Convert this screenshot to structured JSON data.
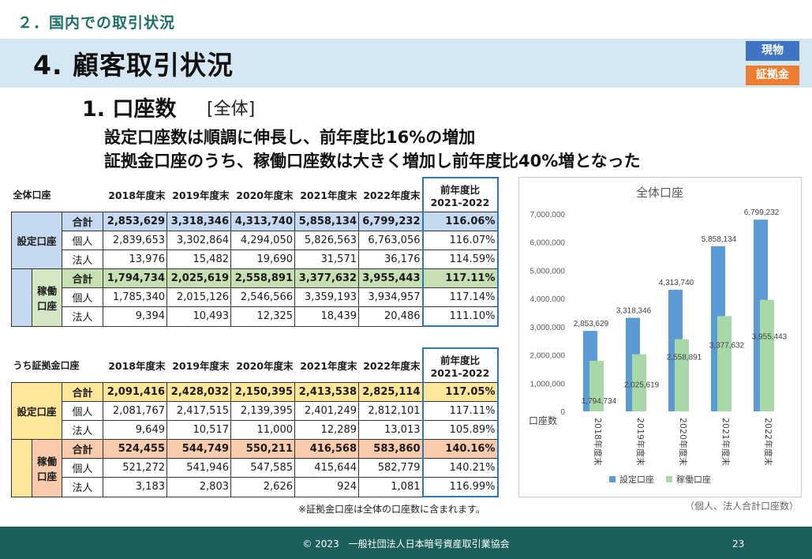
{
  "header": {
    "section_title": "２．国内での取引状況",
    "main_title": "4. 顧客取引状況",
    "tags": [
      "現物",
      "証拠金"
    ],
    "subtitle": "1. 口座数",
    "subtitle_scope": "[全体]",
    "headline_1": "設定口座数は順調に伸長し、前年度比16%の増加",
    "headline_2": "証拠金口座のうち、稼働口座数は大きく増加し前年度比40%増となった"
  },
  "colors": {
    "teal": "#1f6f6b",
    "banner": "#d6e7f4",
    "blue_tag": "#3d75c4",
    "orange_tag": "#ed7d31",
    "t1_group": "#c5daf0",
    "t1_sub_group": "#d5e8c5",
    "t1_row_total": "#c5daf0",
    "t1_sub_row_total": "#c6e0b4",
    "t2_group": "#ffe699",
    "t2_sub_group": "#f8cbad",
    "t2_row_total": "#ffe699",
    "t2_sub_row_total": "#f8cbad",
    "bar_set": "#5b9bd5",
    "bar_active": "#a9d8a8",
    "footer": "#1d5f5a"
  },
  "table_total": {
    "name": "全体口座",
    "columns": [
      "2018年度末",
      "2019年度末",
      "2020年度末",
      "2021年度末",
      "2022年度末"
    ],
    "yoy_header": [
      "前年度比",
      "2021-2022"
    ],
    "group_label": "設定口座",
    "sub_group_label": [
      "稼働",
      "口座"
    ],
    "rows": [
      {
        "kind": "合計",
        "values": [
          "2,853,629",
          "3,318,346",
          "4,313,740",
          "5,858,134",
          "6,799,232"
        ],
        "yoy": "116.06%"
      },
      {
        "kind": "個人",
        "values": [
          "2,839,653",
          "3,302,864",
          "4,294,050",
          "5,826,563",
          "6,763,056"
        ],
        "yoy": "116.07%"
      },
      {
        "kind": "法人",
        "values": [
          "13,976",
          "15,482",
          "19,690",
          "31,571",
          "36,176"
        ],
        "yoy": "114.59%"
      },
      {
        "kind": "合計",
        "values": [
          "1,794,734",
          "2,025,619",
          "2,558,891",
          "3,377,632",
          "3,955,443"
        ],
        "yoy": "117.11%"
      },
      {
        "kind": "個人",
        "values": [
          "1,785,340",
          "2,015,126",
          "2,546,566",
          "3,359,193",
          "3,934,957"
        ],
        "yoy": "117.14%"
      },
      {
        "kind": "法人",
        "values": [
          "9,394",
          "10,493",
          "12,325",
          "18,439",
          "20,486"
        ],
        "yoy": "111.10%"
      }
    ]
  },
  "table_margin": {
    "name": "うち証拠金口座",
    "columns": [
      "2018年度末",
      "2019年度末",
      "2020年度末",
      "2021年度末",
      "2022年度末"
    ],
    "yoy_header": [
      "前年度比",
      "2021-2022"
    ],
    "group_label": "設定口座",
    "sub_group_label": [
      "稼働",
      "口座"
    ],
    "rows": [
      {
        "kind": "合計",
        "values": [
          "2,091,416",
          "2,428,032",
          "2,150,395",
          "2,413,538",
          "2,825,114"
        ],
        "yoy": "117.05%"
      },
      {
        "kind": "個人",
        "values": [
          "2,081,767",
          "2,417,515",
          "2,139,395",
          "2,401,249",
          "2,812,101"
        ],
        "yoy": "117.11%"
      },
      {
        "kind": "法人",
        "values": [
          "9,649",
          "10,517",
          "11,000",
          "12,289",
          "13,013"
        ],
        "yoy": "105.89%"
      },
      {
        "kind": "合計",
        "values": [
          "524,455",
          "544,749",
          "550,211",
          "416,568",
          "583,860"
        ],
        "yoy": "140.16%"
      },
      {
        "kind": "個人",
        "values": [
          "521,272",
          "541,946",
          "547,585",
          "415,644",
          "582,779"
        ],
        "yoy": "140.21%"
      },
      {
        "kind": "法人",
        "values": [
          "3,183",
          "2,803",
          "2,626",
          "924",
          "1,081"
        ],
        "yoy": "116.99%"
      }
    ]
  },
  "chart_data": {
    "type": "bar",
    "title": "全体口座",
    "ylabel": "口座数",
    "categories": [
      "2018年度末",
      "2019年度末",
      "2020年度末",
      "2021年度末",
      "2022年度末"
    ],
    "series": [
      {
        "name": "設定口座",
        "values": [
          2853629,
          3318346,
          4313740,
          5858134,
          6799232
        ],
        "labels": [
          "2,853,629",
          "3,318,346",
          "4,313,740",
          "5,858,134",
          "6,799,232"
        ],
        "color": "#5b9bd5"
      },
      {
        "name": "稼働口座",
        "values": [
          1794734,
          2025619,
          2558891,
          3377632,
          3955443
        ],
        "labels": [
          "1,794,734",
          "2,025,619",
          "2,558,891",
          "3,377,632",
          "3,955,443"
        ],
        "color": "#a9d8a8"
      }
    ],
    "ylim": [
      0,
      7000000
    ],
    "yticks": [
      "0",
      "1,000,000",
      "2,000,000",
      "3,000,000",
      "4,000,000",
      "5,000,000",
      "6,000,000",
      "7,000,000"
    ],
    "grid": false,
    "legend": "bottom"
  },
  "notes": {
    "margin_note": "※証拠金口座は全体の口座数に含まれます。",
    "unit_note": "（個人、法人合計口座数）"
  },
  "footer": {
    "copyright": "© 2023　一般社団法人日本暗号資産取引業協会",
    "page": "23"
  }
}
